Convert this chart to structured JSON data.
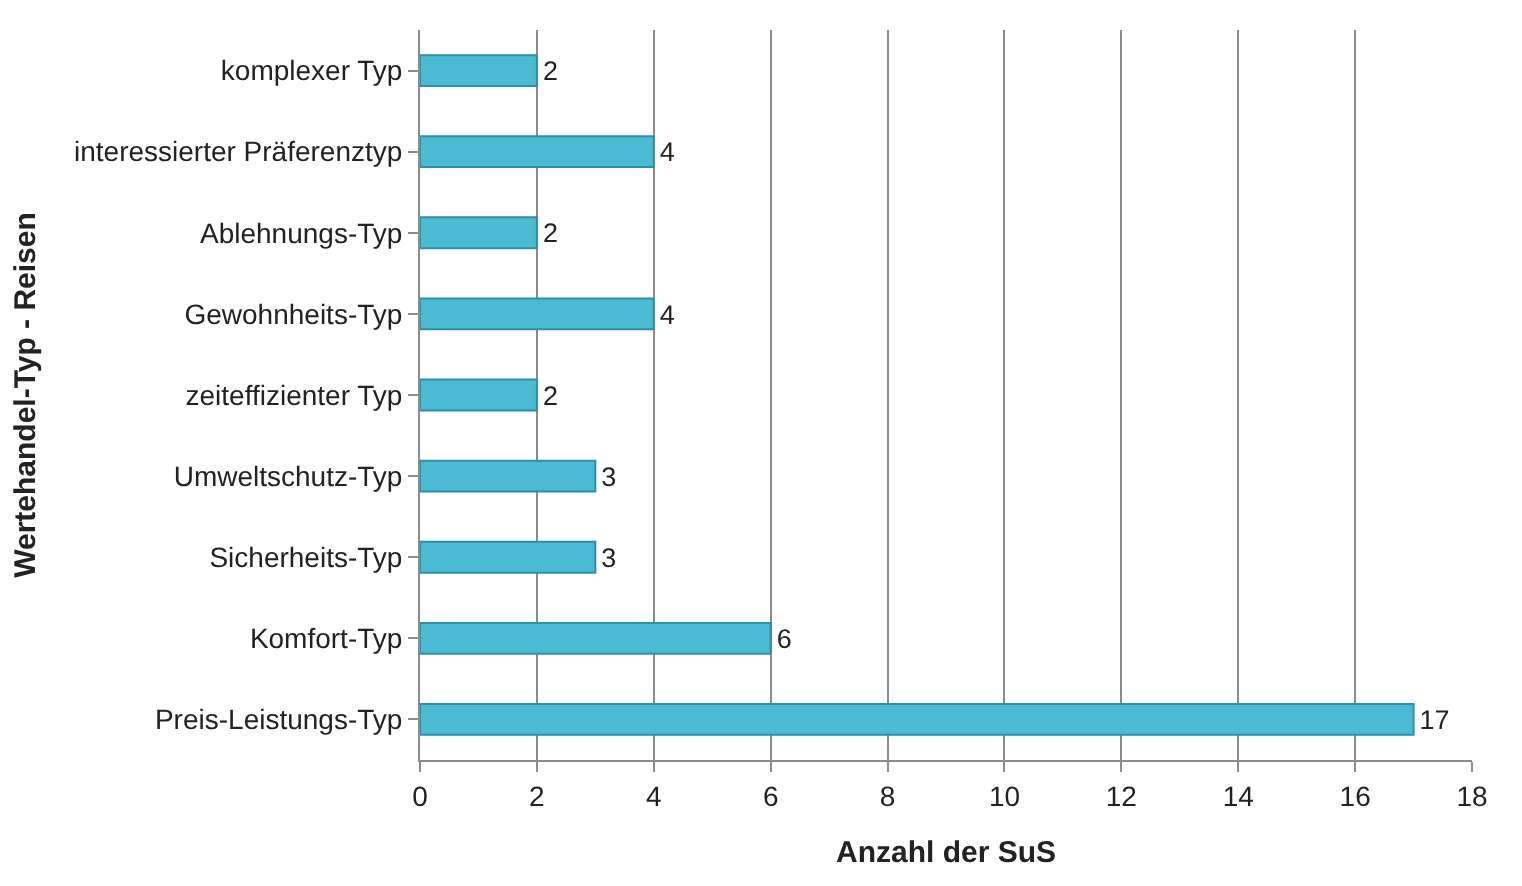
{
  "chart_data": {
    "type": "bar",
    "orientation": "horizontal",
    "categories": [
      "komplexer Typ",
      "interessierter Präferenztyp",
      "Ablehnungs-Typ",
      "Gewohnheits-Typ",
      "zeiteffizienter Typ",
      "Umweltschutz-Typ",
      "Sicherheits-Typ",
      "Komfort-Typ",
      "Preis-Leistungs-Typ"
    ],
    "values": [
      2,
      4,
      2,
      4,
      2,
      3,
      3,
      6,
      17
    ],
    "color": "#4bbbd3",
    "xlim": [
      0,
      18
    ],
    "xticks": [
      0,
      2,
      4,
      6,
      8,
      10,
      12,
      14,
      16,
      18
    ],
    "xlabel": "Anzahl der SuS",
    "ylabel": "Wertehandel-Typ - Reisen",
    "grid": "x",
    "data_labels": true
  }
}
